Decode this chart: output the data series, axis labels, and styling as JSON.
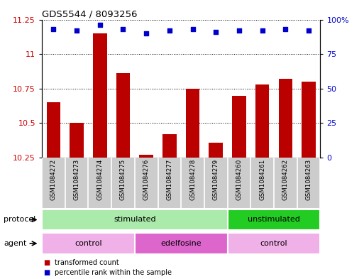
{
  "title": "GDS5544 / 8093256",
  "samples": [
    "GSM1084272",
    "GSM1084273",
    "GSM1084274",
    "GSM1084275",
    "GSM1084276",
    "GSM1084277",
    "GSM1084278",
    "GSM1084279",
    "GSM1084260",
    "GSM1084261",
    "GSM1084262",
    "GSM1084263"
  ],
  "transformed_count": [
    10.65,
    10.5,
    11.15,
    10.86,
    10.27,
    10.42,
    10.75,
    10.36,
    10.7,
    10.78,
    10.82,
    10.8
  ],
  "percentile_rank": [
    93,
    92,
    96,
    93,
    90,
    92,
    93,
    91,
    92,
    92,
    93,
    92
  ],
  "bar_color": "#bb0000",
  "dot_color": "#0000cc",
  "ylim_left": [
    10.25,
    11.25
  ],
  "ylim_right": [
    0,
    100
  ],
  "yticks_left": [
    10.25,
    10.5,
    10.75,
    11.0,
    11.25
  ],
  "ytick_labels_left": [
    "10.25",
    "10.5",
    "10.75",
    "11",
    "11.25"
  ],
  "yticks_right": [
    0,
    25,
    50,
    75,
    100
  ],
  "ytick_labels_right": [
    "0",
    "25",
    "50",
    "75",
    "100%"
  ],
  "protocol_groups": [
    {
      "label": "stimulated",
      "start": 0,
      "end": 8,
      "color": "#aaeaaa"
    },
    {
      "label": "unstimulated",
      "start": 8,
      "end": 12,
      "color": "#22cc22"
    }
  ],
  "agent_groups": [
    {
      "label": "control",
      "start": 0,
      "end": 4,
      "color": "#f0b0e8"
    },
    {
      "label": "edelfosine",
      "start": 4,
      "end": 8,
      "color": "#dd66cc"
    },
    {
      "label": "control",
      "start": 8,
      "end": 12,
      "color": "#f0b0e8"
    }
  ],
  "legend_items": [
    {
      "label": "transformed count",
      "color": "#bb0000"
    },
    {
      "label": "percentile rank within the sample",
      "color": "#0000cc"
    }
  ],
  "bg_color": "#ffffff",
  "label_bg_color": "#cccccc",
  "label_border_color": "#aaaaaa",
  "protocol_label": "protocol",
  "agent_label": "agent"
}
